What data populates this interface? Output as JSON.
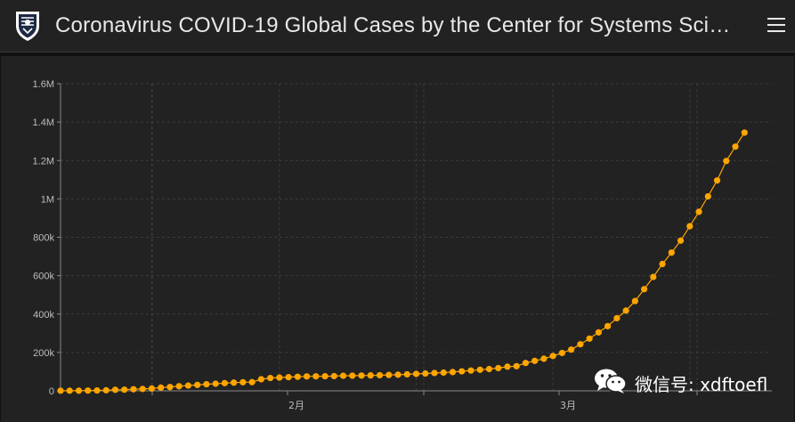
{
  "header": {
    "title": "Coronavirus COVID-19 Global Cases by the Center for Systems Scie…",
    "logo_icon": "university-shield-icon",
    "menu_icon": "hamburger-menu-icon"
  },
  "colors": {
    "series": "#FFA500",
    "background": "#222222",
    "grid": "#3c3c3c"
  },
  "chart_data": {
    "type": "line",
    "title": "",
    "xlabel": "",
    "ylabel": "",
    "ylim": [
      0,
      1600000
    ],
    "y_ticks": [
      {
        "value": 0,
        "label": "0"
      },
      {
        "value": 200000,
        "label": "200k"
      },
      {
        "value": 400000,
        "label": "400k"
      },
      {
        "value": 600000,
        "label": "600k"
      },
      {
        "value": 800000,
        "label": "800k"
      },
      {
        "value": 1000000,
        "label": "1M"
      },
      {
        "value": 1200000,
        "label": "1.2M"
      },
      {
        "value": 1400000,
        "label": "1.4M"
      },
      {
        "value": 1600000,
        "label": "1.6M"
      }
    ],
    "x_ticks": [
      {
        "label": "2月"
      },
      {
        "label": "3月"
      }
    ],
    "grid": true,
    "legend": "none",
    "series": [
      {
        "values": [
          555,
          654,
          941,
          1434,
          2118,
          2927,
          5578,
          6166,
          8234,
          9927,
          12038,
          16787,
          19881,
          23892,
          27635,
          30817,
          34391,
          37120,
          40150,
          42762,
          44802,
          45221,
          60368,
          66885,
          69030,
          71224,
          73258,
          75136,
          75639,
          76197,
          76819,
          78572,
          78958,
          79561,
          80406,
          81388,
          82746,
          84112,
          86011,
          88369,
          90306,
          92840,
          95120,
          97886,
          101801,
          105847,
          109821,
          113590,
          118620,
          125875,
          128352,
          145205,
          156101,
          167454,
          181574,
          197102,
          214821,
          242570,
          272208,
          304507,
          336953,
          378235,
          418045,
          467653,
          529591,
          593291,
          660706,
          720117,
          782365,
          857487,
          932605,
          1013157,
          1095917,
          1197405,
          1272115,
          1345101
        ]
      }
    ]
  },
  "watermark": {
    "icon": "wechat-icon",
    "text": "微信号: xdftoefl"
  }
}
